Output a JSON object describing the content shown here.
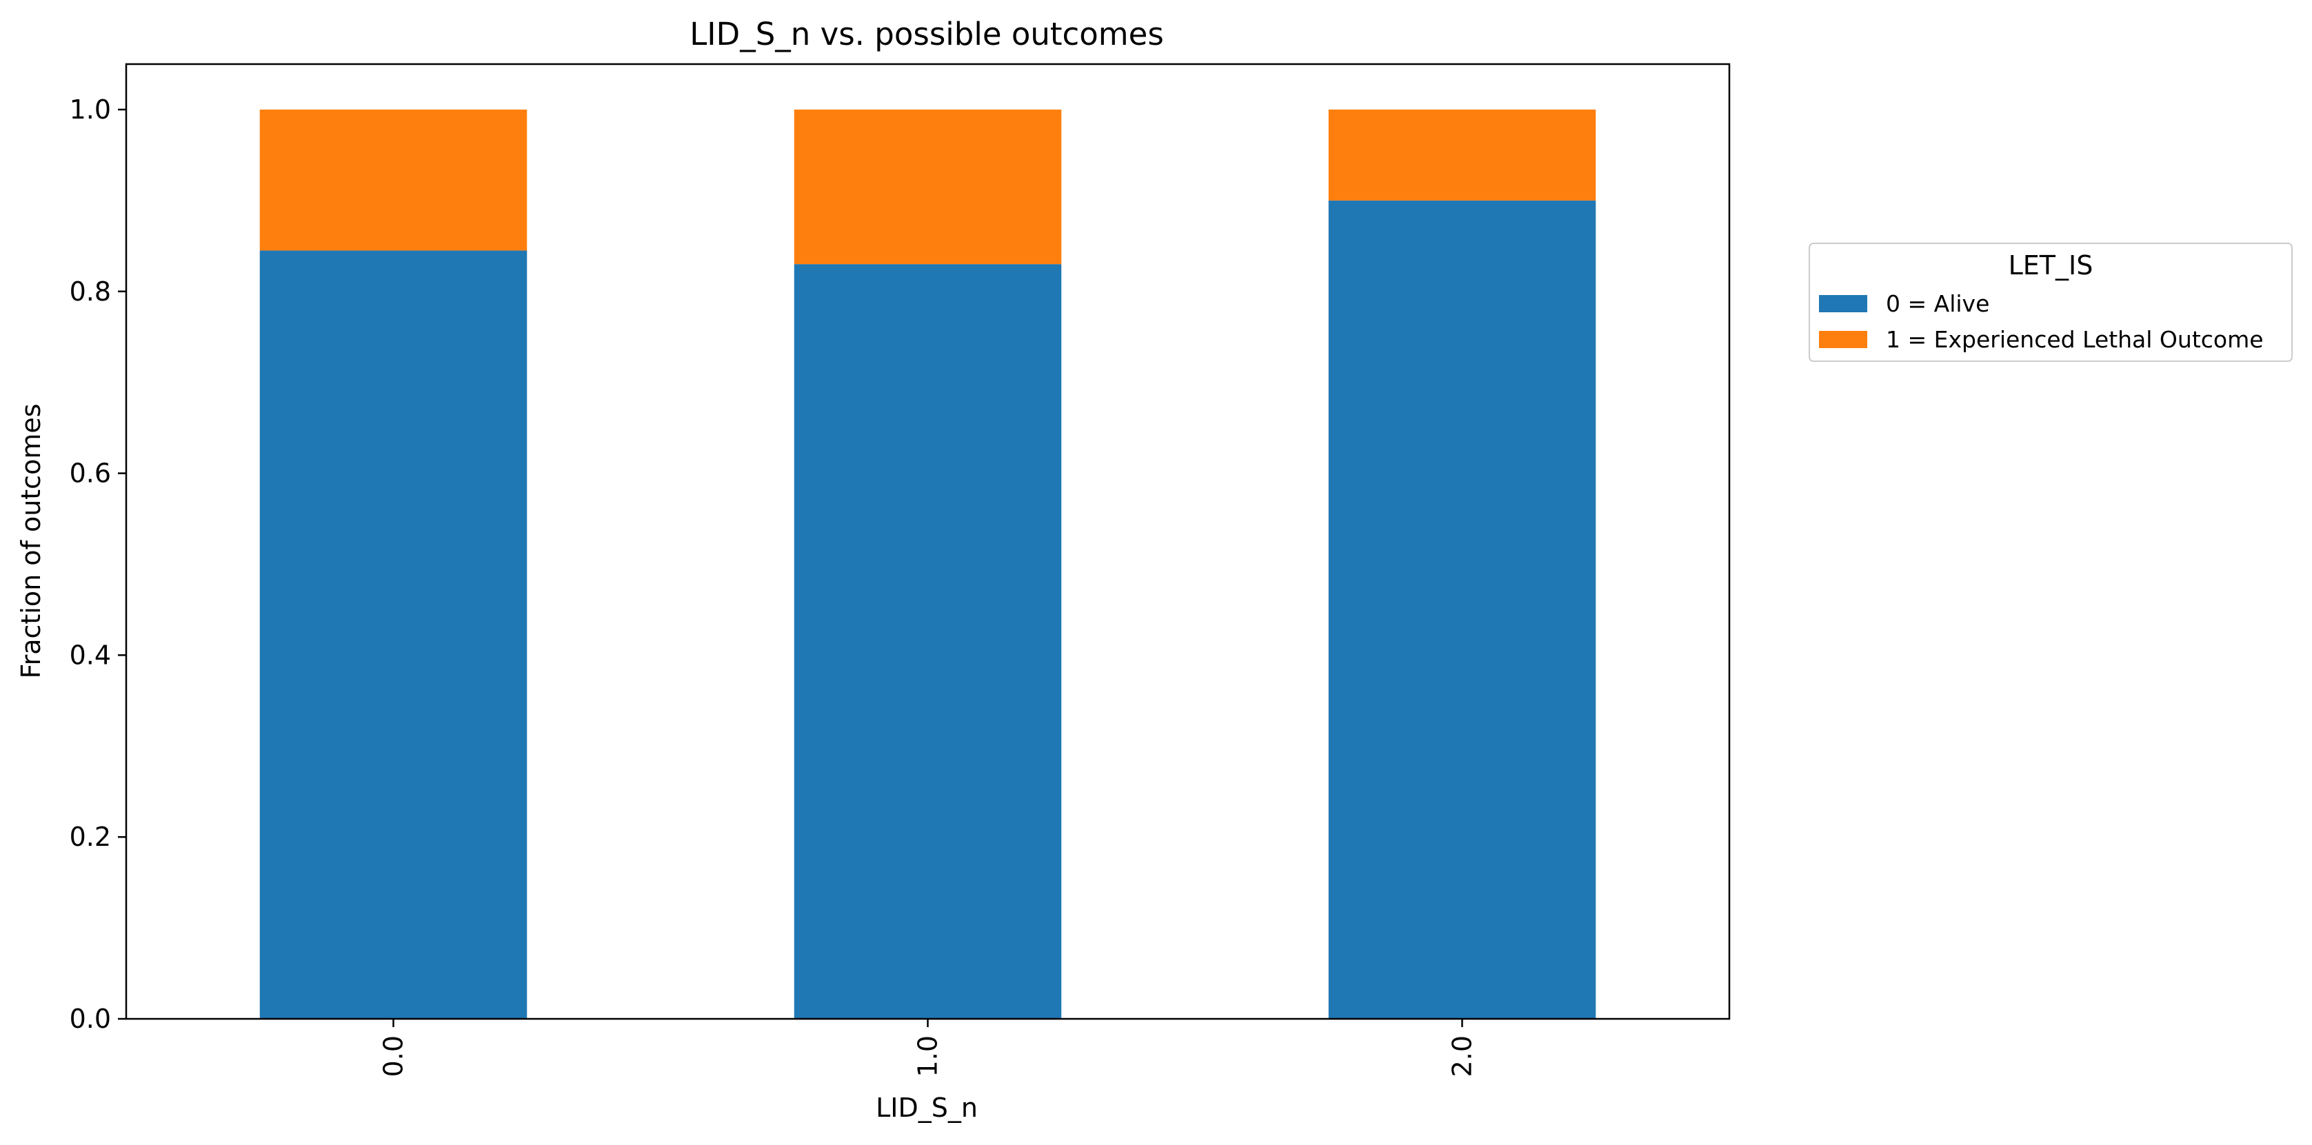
{
  "chart_data": {
    "type": "bar",
    "stacked": true,
    "title": "LID_S_n vs. possible outcomes",
    "xlabel": "LID_S_n",
    "ylabel": "Fraction of outcomes",
    "categories": [
      "0.0",
      "1.0",
      "2.0"
    ],
    "ylim": [
      0,
      1.05
    ],
    "yticks": [
      "0.0",
      "0.2",
      "0.4",
      "0.6",
      "0.8",
      "1.0"
    ],
    "grid": false,
    "legend": {
      "title": "LET_IS",
      "placement": "outside-right"
    },
    "series": [
      {
        "name": "0 = Alive",
        "values": [
          0.845,
          0.83,
          0.9
        ],
        "color": "#1f77b4"
      },
      {
        "name": "1 = Experienced Lethal Outcome",
        "values": [
          0.155,
          0.17,
          0.1
        ],
        "color": "#ff7f0e"
      }
    ]
  }
}
